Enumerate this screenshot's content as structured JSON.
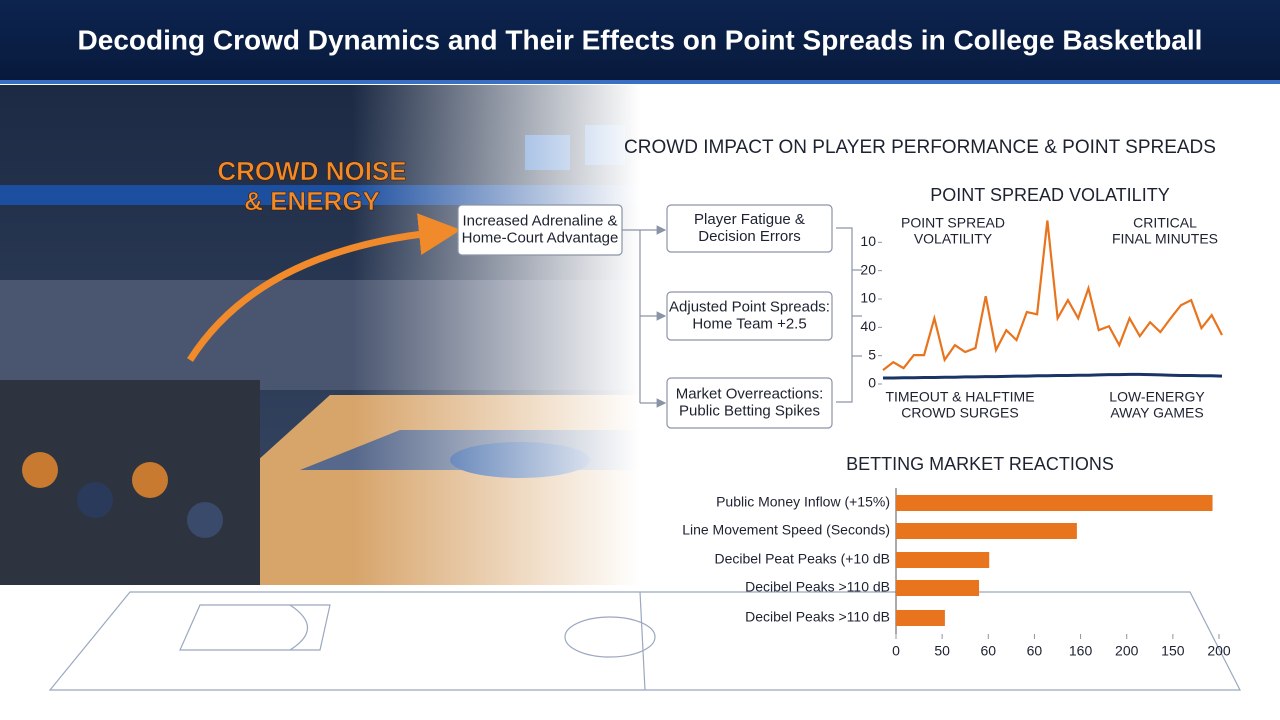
{
  "title": "Decoding Crowd Dynamics and Their Effects on Point Spreads in College Basketball",
  "photo": {
    "callout": [
      "CROWD NOISE",
      "& ENERGY"
    ]
  },
  "diagram": {
    "title": "CROWD IMPACT ON PLAYER PERFORMANCE & POINT SPREADS",
    "nodes": [
      {
        "label": [
          "Increased Adrenaline &",
          "Home-Court Advantage"
        ]
      },
      {
        "label": [
          "Player Fatigue &",
          "Decision Errors"
        ]
      },
      {
        "label": [
          "Adjusted Point Spreads:",
          "Home Team +2.5"
        ]
      },
      {
        "label": [
          "Market Overreactions:",
          "Public Betting Spikes"
        ]
      }
    ]
  },
  "chart_data": [
    {
      "type": "line",
      "title": "POINT SPREAD VOLATILITY",
      "annotations": [
        [
          "POINT SPREAD",
          "VOLATILITY"
        ],
        [
          "CRITICAL",
          "FINAL MINUTES"
        ],
        [
          "TIMEOUT & HALFTIME",
          "CROWD SURGES"
        ],
        [
          "LOW-ENERGY",
          "AWAY GAMES"
        ]
      ],
      "ylim": [
        0,
        60
      ],
      "yticks": [
        0,
        {
          "value": 10,
          "label": "5"
        },
        {
          "value": 20,
          "label": "40"
        },
        {
          "value": 30,
          "label": "10"
        },
        {
          "value": 40,
          "label": "20"
        },
        {
          "value": 50,
          "label": "10"
        }
      ],
      "series": [
        {
          "color": "#e8741e",
          "values": [
            4.9,
            7.7,
            5.6,
            10.2,
            10.2,
            23.2,
            8.5,
            13.7,
            11.3,
            12.7,
            31.0,
            12.0,
            19.0,
            15.5,
            25.4,
            24.6,
            57.7,
            23.2,
            29.6,
            23.2,
            33.8,
            19.0,
            20.4,
            13.7,
            23.2,
            16.9,
            21.8,
            18.3,
            23.2,
            27.8,
            29.6,
            19.7,
            24.3,
            17.3
          ]
        },
        {
          "color": "#1a3466",
          "values": [
            2.1,
            2.1,
            2.2,
            2.2,
            2.3,
            2.3,
            2.4,
            2.4,
            2.5,
            2.5,
            2.6,
            2.6,
            2.7,
            2.8,
            2.8,
            2.9,
            2.9,
            3.0,
            3.0,
            3.1,
            3.1,
            3.2,
            3.3,
            3.3,
            3.4,
            3.4,
            3.3,
            3.2,
            3.1,
            3.0,
            3.0,
            2.9,
            2.9,
            2.8
          ]
        }
      ]
    },
    {
      "type": "bar",
      "horizontal": true,
      "title": "BETTING MARKET REACTIONS",
      "categories": [
        "Public Money Inflow (+15%)",
        "Line Movement Speed (Seconds)",
        "Decibel Peat Peaks (+10 dB",
        "Decibel Peaks >110 dB",
        "Decibel Peaks >110 dB"
      ],
      "values": [
        343,
        196,
        101,
        90,
        53
      ],
      "color": "#e8741e",
      "xlim": [
        0,
        350
      ],
      "xticks": [
        0,
        50,
        {
          "value": 100,
          "label": "60"
        },
        {
          "value": 150,
          "label": "60"
        },
        {
          "value": 200,
          "label": "160"
        },
        {
          "value": 250,
          "label": "200"
        },
        {
          "value": 300,
          "label": "150"
        },
        {
          "value": 350,
          "label": "200"
        }
      ]
    }
  ]
}
